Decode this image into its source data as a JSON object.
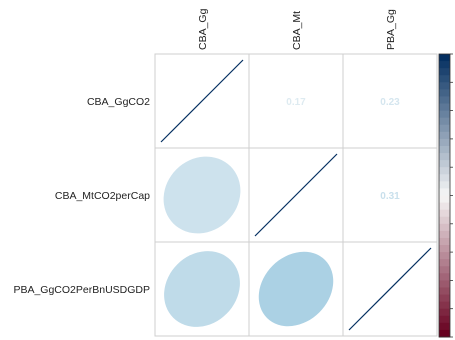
{
  "chart_data": {
    "type": "heatmap",
    "variables": [
      "CBA_GgCO2",
      "CBA_MtCO2perCap",
      "PBA_GgCO2PerBnUSDGDP"
    ],
    "column_labels": [
      "CBA_Gg",
      "CBA_Mt",
      "PBA_Gg"
    ],
    "correlation_matrix": [
      [
        1.0,
        0.17,
        0.23
      ],
      [
        0.17,
        1.0,
        0.31
      ],
      [
        0.23,
        0.31,
        1.0
      ]
    ],
    "lower_method": "ellipse",
    "upper_method": "number",
    "diagonal": "scatter line",
    "color_scale": {
      "low": "#67001f",
      "mid": "#f7f7f7",
      "high": "#053061",
      "range": [
        -1,
        1
      ]
    },
    "legend_position": "right",
    "grid": true
  }
}
